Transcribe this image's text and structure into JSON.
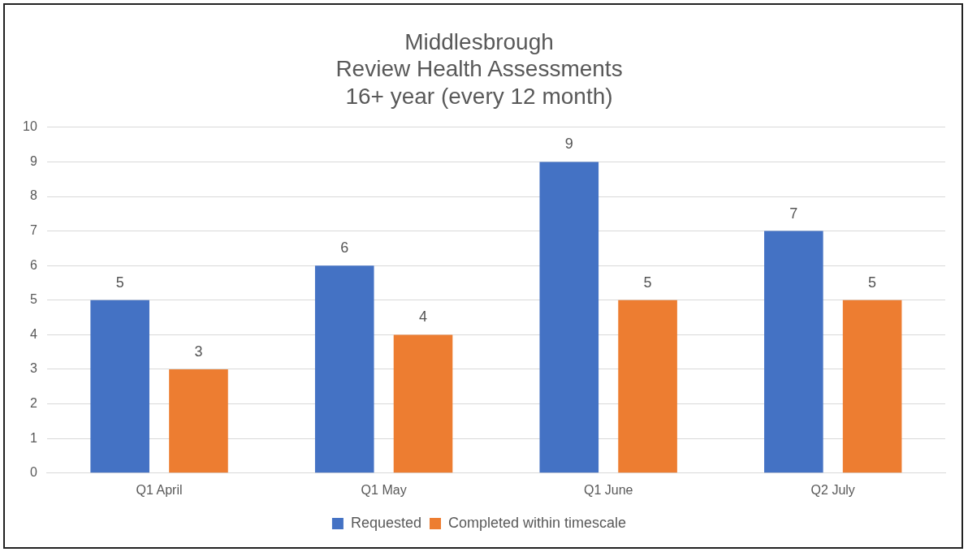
{
  "chart_data": {
    "type": "bar",
    "title": "Middlesbrough\nReview Health Assessments\n16+ year (every 12 month)",
    "categories": [
      "Q1 April",
      "Q1 May",
      "Q1 June",
      "Q2 July"
    ],
    "series": [
      {
        "name": "Requested",
        "color": "#4472c4",
        "values": [
          5,
          6,
          9,
          7
        ]
      },
      {
        "name": "Completed within timescale",
        "color": "#ed7d31",
        "values": [
          3,
          4,
          5,
          5
        ]
      }
    ],
    "ylim": [
      0,
      10
    ],
    "yticks": [
      0,
      1,
      2,
      3,
      4,
      5,
      6,
      7,
      8,
      9,
      10
    ],
    "grid": "y",
    "legend": "bottom",
    "data_labels": true
  }
}
